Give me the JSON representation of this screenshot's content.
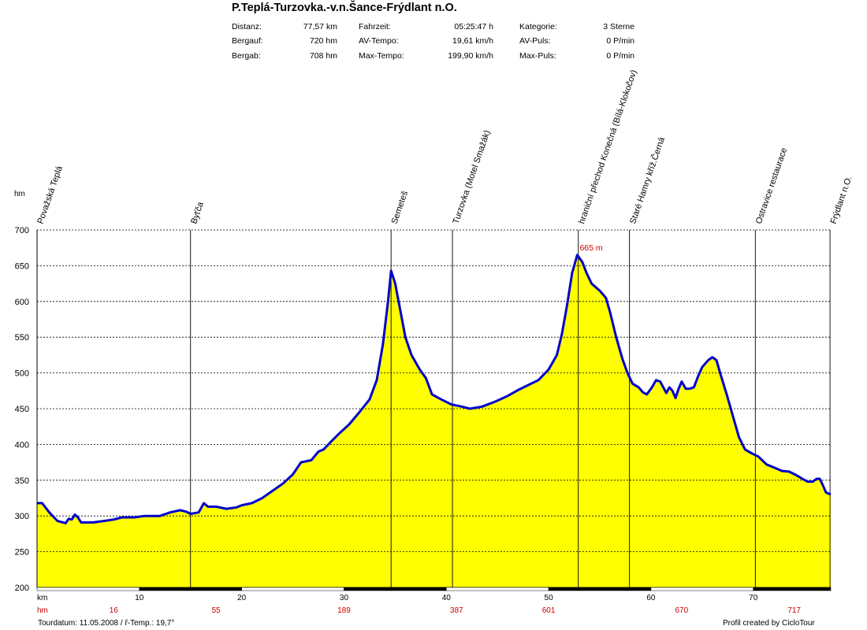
{
  "header": {
    "title": "P.Teplá-Turzovka.-v.n.Šance-Frýdlant n.O.",
    "stats": [
      {
        "label": "Distanz:",
        "value": "77,57 km"
      },
      {
        "label": "Bergauf:",
        "value": "720 hm"
      },
      {
        "label": "Bergab:",
        "value": "708 hm"
      },
      {
        "label": "Fahrzeit:",
        "value": "05:25:47 h"
      },
      {
        "label": "AV-Tempo:",
        "value": "19,61 km/h"
      },
      {
        "label": "Max-Tempo:",
        "value": "199,90 km/h"
      },
      {
        "label": "Kategorie:",
        "value": "3 Sterne"
      },
      {
        "label": "AV-Puls:",
        "value": "0 P/min"
      },
      {
        "label": "Max-Puls:",
        "value": "0 P/min"
      }
    ]
  },
  "footer": {
    "tour_date": "Tourdatum: 11.05.2008  /  ř-Temp.: 19,7°",
    "credit": "Profil created by CicloTour"
  },
  "chart_data": {
    "type": "area",
    "ylabel": "hm",
    "xlabel": "km",
    "xlim": [
      0,
      77.57
    ],
    "ylim": [
      200,
      700
    ],
    "yticks": [
      200,
      250,
      300,
      350,
      400,
      450,
      500,
      550,
      600,
      650,
      700
    ],
    "xticks": [
      10,
      20,
      30,
      40,
      50,
      60,
      70
    ],
    "grid": true,
    "fill_color": "#ffff00",
    "line_color": "#0000cc",
    "max_label": "665 m",
    "max_point": {
      "x": 52.8,
      "y": 665
    },
    "waypoints": [
      {
        "name": "Považská Teplá",
        "x": 0
      },
      {
        "name": "Byťča",
        "x": 15.0
      },
      {
        "name": "Semeteš",
        "x": 34.6
      },
      {
        "name": "Turzovka (Motel Smažák)",
        "x": 40.6
      },
      {
        "name": "hraniční přechod Konečná (Bílá-Klokočov)",
        "x": 52.9
      },
      {
        "name": "Staré Hamry kříž.Černá",
        "x": 57.9
      },
      {
        "name": "Ostravice restaurace",
        "x": 70.2
      },
      {
        "name": "Frýdlant n.O.",
        "x": 77.5
      }
    ],
    "hm_row": [
      {
        "x": 7.5,
        "label": "16"
      },
      {
        "x": 17.5,
        "label": "55"
      },
      {
        "x": 30.0,
        "label": "189"
      },
      {
        "x": 41.0,
        "label": "387"
      },
      {
        "x": 50.0,
        "label": "601"
      },
      {
        "x": 63.0,
        "label": "670"
      },
      {
        "x": 74.0,
        "label": "717"
      }
    ],
    "hm_row_label": "hm",
    "profile": [
      [
        0,
        318
      ],
      [
        0.5,
        318
      ],
      [
        1.2,
        305
      ],
      [
        2.0,
        293
      ],
      [
        2.8,
        290
      ],
      [
        3.1,
        296
      ],
      [
        3.4,
        295
      ],
      [
        3.7,
        302
      ],
      [
        4.0,
        298
      ],
      [
        4.3,
        291
      ],
      [
        5.5,
        291
      ],
      [
        6.5,
        293
      ],
      [
        7.5,
        295
      ],
      [
        8.3,
        298
      ],
      [
        9.5,
        298
      ],
      [
        10.5,
        300
      ],
      [
        12.0,
        300
      ],
      [
        13.0,
        305
      ],
      [
        14.0,
        308
      ],
      [
        14.6,
        306
      ],
      [
        15.0,
        303
      ],
      [
        15.8,
        305
      ],
      [
        16.3,
        318
      ],
      [
        16.7,
        313
      ],
      [
        17.5,
        313
      ],
      [
        18.5,
        310
      ],
      [
        19.5,
        312
      ],
      [
        20.0,
        315
      ],
      [
        21.0,
        318
      ],
      [
        22.0,
        325
      ],
      [
        23.0,
        335
      ],
      [
        24.0,
        345
      ],
      [
        25.0,
        358
      ],
      [
        25.8,
        375
      ],
      [
        26.8,
        378
      ],
      [
        27.5,
        390
      ],
      [
        28.0,
        393
      ],
      [
        28.8,
        405
      ],
      [
        29.5,
        415
      ],
      [
        30.5,
        428
      ],
      [
        31.5,
        445
      ],
      [
        32.5,
        463
      ],
      [
        33.2,
        490
      ],
      [
        33.8,
        540
      ],
      [
        34.3,
        600
      ],
      [
        34.6,
        643
      ],
      [
        35.0,
        625
      ],
      [
        35.6,
        580
      ],
      [
        36.0,
        550
      ],
      [
        36.6,
        525
      ],
      [
        37.4,
        505
      ],
      [
        38.0,
        493
      ],
      [
        38.6,
        470
      ],
      [
        39.5,
        463
      ],
      [
        40.5,
        456
      ],
      [
        41.5,
        453
      ],
      [
        42.3,
        450
      ],
      [
        43.5,
        453
      ],
      [
        44.8,
        460
      ],
      [
        46.0,
        468
      ],
      [
        47.0,
        476
      ],
      [
        48.0,
        483
      ],
      [
        49.0,
        490
      ],
      [
        50.0,
        505
      ],
      [
        50.8,
        525
      ],
      [
        51.3,
        555
      ],
      [
        51.8,
        595
      ],
      [
        52.3,
        640
      ],
      [
        52.8,
        665
      ],
      [
        53.3,
        655
      ],
      [
        53.7,
        640
      ],
      [
        54.2,
        625
      ],
      [
        55.0,
        615
      ],
      [
        55.6,
        605
      ],
      [
        56.0,
        585
      ],
      [
        56.6,
        550
      ],
      [
        57.2,
        520
      ],
      [
        57.7,
        500
      ],
      [
        58.2,
        485
      ],
      [
        58.8,
        480
      ],
      [
        59.2,
        473
      ],
      [
        59.6,
        470
      ],
      [
        60.1,
        480
      ],
      [
        60.5,
        490
      ],
      [
        60.9,
        488
      ],
      [
        61.2,
        480
      ],
      [
        61.5,
        472
      ],
      [
        61.8,
        480
      ],
      [
        62.1,
        475
      ],
      [
        62.4,
        465
      ],
      [
        62.7,
        478
      ],
      [
        63.0,
        488
      ],
      [
        63.4,
        478
      ],
      [
        63.8,
        478
      ],
      [
        64.2,
        480
      ],
      [
        64.6,
        495
      ],
      [
        65.0,
        508
      ],
      [
        65.6,
        518
      ],
      [
        66.0,
        522
      ],
      [
        66.4,
        518
      ],
      [
        66.8,
        498
      ],
      [
        67.4,
        470
      ],
      [
        68.0,
        440
      ],
      [
        68.6,
        410
      ],
      [
        69.2,
        393
      ],
      [
        69.8,
        388
      ],
      [
        70.5,
        383
      ],
      [
        71.3,
        372
      ],
      [
        72.0,
        368
      ],
      [
        72.8,
        363
      ],
      [
        73.5,
        362
      ],
      [
        74.2,
        357
      ],
      [
        74.8,
        352
      ],
      [
        75.3,
        348
      ],
      [
        75.8,
        348
      ],
      [
        76.2,
        352
      ],
      [
        76.5,
        352
      ],
      [
        76.8,
        343
      ],
      [
        77.1,
        333
      ],
      [
        77.57,
        330
      ]
    ]
  }
}
